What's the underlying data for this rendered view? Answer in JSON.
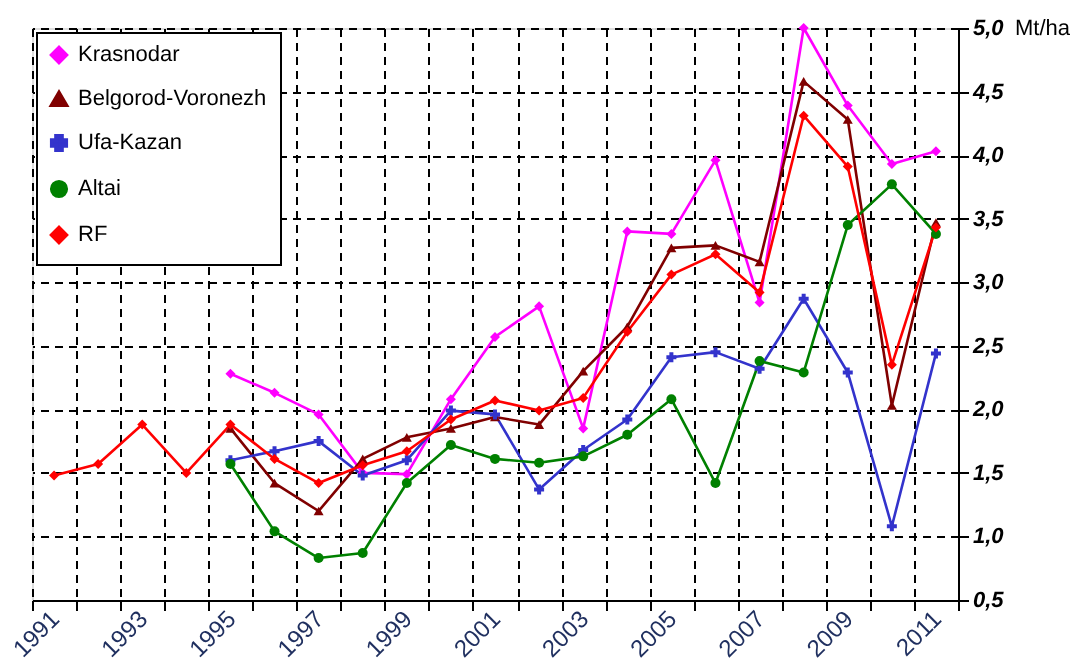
{
  "chart_data": {
    "type": "line",
    "ylabel": "Mt/ha",
    "categories": [
      "1991",
      null,
      "1993",
      null,
      "1995",
      null,
      "1997",
      null,
      "1999",
      null,
      "2001",
      null,
      "2003",
      null,
      "2005",
      null,
      "2007",
      null,
      "2009",
      null,
      "2011"
    ],
    "series": [
      {
        "name": "Krasnodar",
        "color": "#ff00ff",
        "marker": "diamond",
        "values": [
          null,
          null,
          null,
          null,
          2.28,
          2.13,
          1.96,
          1.5,
          1.49,
          2.08,
          2.57,
          2.81,
          1.85,
          3.4,
          3.38,
          3.96,
          2.84,
          5.0,
          4.39,
          3.93,
          4.03
        ]
      },
      {
        "name": "Belgorod-Voronezh",
        "color": "#800000",
        "marker": "triangle",
        "values": [
          null,
          null,
          null,
          null,
          1.85,
          1.42,
          1.2,
          1.61,
          1.78,
          1.85,
          1.94,
          1.88,
          2.3,
          2.65,
          3.27,
          3.29,
          3.16,
          4.58,
          4.28,
          2.03,
          3.47
        ]
      },
      {
        "name": "Ufa-Kazan",
        "color": "#3333cc",
        "marker": "cross",
        "values": [
          null,
          null,
          null,
          null,
          1.6,
          1.67,
          1.75,
          1.48,
          1.6,
          1.99,
          1.96,
          1.37,
          1.68,
          1.92,
          2.41,
          2.45,
          2.32,
          2.87,
          2.29,
          1.08,
          2.44
        ]
      },
      {
        "name": "Altai",
        "color": "#008000",
        "marker": "circle",
        "values": [
          null,
          null,
          null,
          null,
          1.57,
          1.04,
          0.83,
          0.87,
          1.42,
          1.72,
          1.61,
          1.58,
          1.63,
          1.8,
          2.08,
          1.42,
          2.38,
          2.29,
          3.45,
          3.77,
          3.38
        ]
      },
      {
        "name": "RF",
        "color": "#ff0000",
        "marker": "diamond",
        "values": [
          1.48,
          1.57,
          1.88,
          1.5,
          1.88,
          1.61,
          1.42,
          1.56,
          1.67,
          1.92,
          2.07,
          1.99,
          2.09,
          2.61,
          3.06,
          3.22,
          2.92,
          4.31,
          3.91,
          2.35,
          3.43
        ]
      }
    ],
    "ylim": [
      0.5,
      5.0
    ],
    "yticks": [
      {
        "value": 0.5,
        "label": "0,5"
      },
      {
        "value": 1.0,
        "label": "1,0"
      },
      {
        "value": 1.5,
        "label": "1,5"
      },
      {
        "value": 2.0,
        "label": "2,0"
      },
      {
        "value": 2.5,
        "label": "2,5"
      },
      {
        "value": 3.0,
        "label": "3,0"
      },
      {
        "value": 3.5,
        "label": "3,5"
      },
      {
        "value": 4.0,
        "label": "4,0"
      },
      {
        "value": 4.5,
        "label": "4,5"
      },
      {
        "value": 5.0,
        "label": "5,0"
      }
    ],
    "grid": true,
    "legend": "top left",
    "line_style": "solid"
  }
}
